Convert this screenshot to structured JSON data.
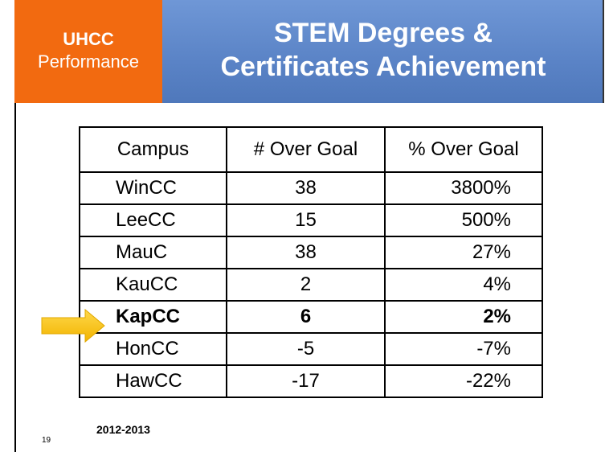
{
  "header": {
    "label": [
      "UHCC",
      "Performance"
    ],
    "title": [
      "STEM Degrees &",
      "Certificates Achievement"
    ]
  },
  "table": {
    "columns": [
      "Campus",
      "# Over Goal",
      "% Over Goal"
    ],
    "rows": [
      [
        "WinCC",
        "38",
        "3800%"
      ],
      [
        "LeeCC",
        "15",
        "500%"
      ],
      [
        "MauC",
        "38",
        "27%"
      ],
      [
        "KauCC",
        "2",
        "4%"
      ],
      [
        "KapCC",
        "6",
        "2%"
      ],
      [
        "HonCC",
        "-5",
        "-7%"
      ],
      [
        "HawCC",
        "-17",
        "-22%"
      ]
    ]
  },
  "footer": {
    "note": "2012-2013",
    "page_number": "19"
  }
}
